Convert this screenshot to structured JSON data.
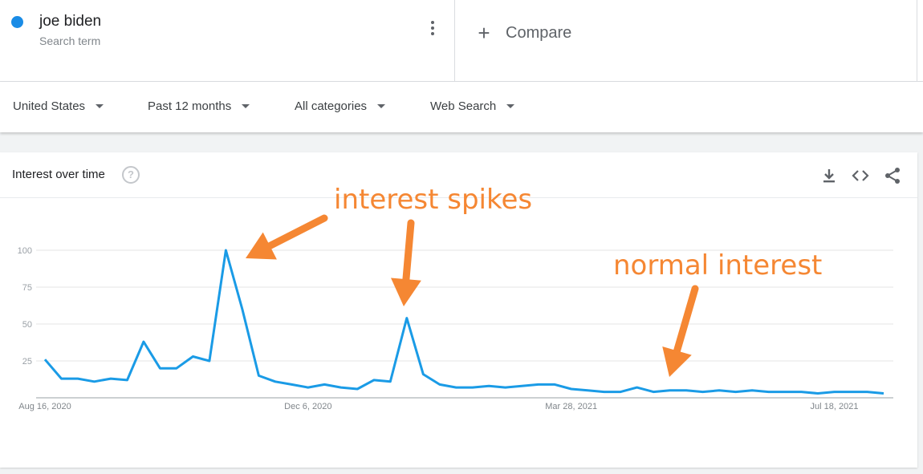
{
  "search": {
    "term": "joe biden",
    "term_type": "Search term",
    "term_color": "#1a8ce6",
    "compare_label": "Compare"
  },
  "filters": {
    "region": "United States",
    "time_range": "Past 12 months",
    "category": "All categories",
    "search_type": "Web Search"
  },
  "card": {
    "title": "Interest over time",
    "help": "?"
  },
  "annotations": {
    "spikes": "interest spikes",
    "normal": "normal interest",
    "color": "#f58733"
  },
  "chart_data": {
    "type": "line",
    "title": "Interest over time",
    "xlabel": "",
    "ylabel": "",
    "ylim": [
      0,
      100
    ],
    "y_ticks": [
      "25",
      "50",
      "75",
      "100"
    ],
    "x_tick_labels": [
      "Aug 16, 2020",
      "Dec 6, 2020",
      "Mar 28, 2021",
      "Jul 18, 2021"
    ],
    "grid": true,
    "series": [
      {
        "name": "joe biden",
        "color": "#1a9be6",
        "values": [
          26,
          13,
          13,
          11,
          13,
          12,
          38,
          20,
          20,
          28,
          25,
          100,
          60,
          15,
          11,
          9,
          7,
          9,
          7,
          6,
          12,
          11,
          54,
          16,
          9,
          7,
          7,
          8,
          7,
          8,
          9,
          9,
          6,
          5,
          4,
          4,
          7,
          4,
          5,
          5,
          4,
          5,
          4,
          5,
          4,
          4,
          4,
          3,
          4,
          4,
          4,
          3
        ]
      }
    ]
  }
}
